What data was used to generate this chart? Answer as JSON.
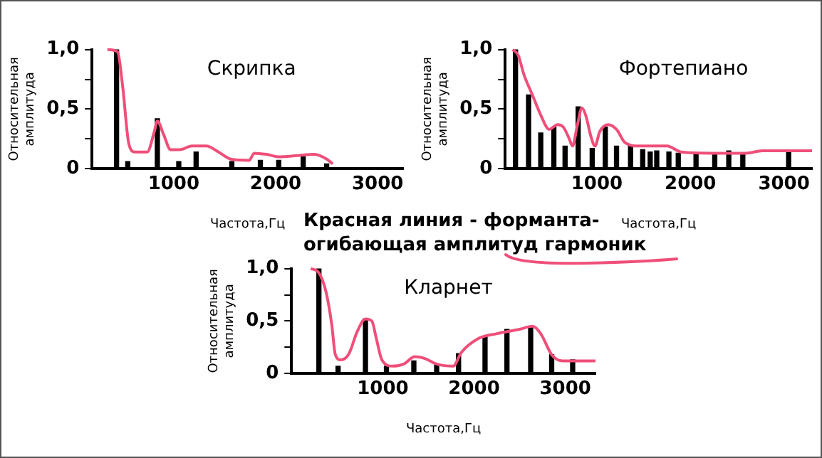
{
  "chart_data": [
    {
      "type": "bar",
      "title": "Скрипка",
      "xlabel": "Частота,Гц",
      "ylabel": "Относительная амплитуда",
      "xlim": [
        200,
        3250
      ],
      "xticks": [
        1000,
        2000,
        3000
      ],
      "ylim": [
        0,
        1
      ],
      "yticks": [
        {
          "value": 0,
          "label": "0"
        },
        {
          "value": 0.25,
          "label": null
        },
        {
          "value": 0.5,
          "label": "0,5"
        },
        {
          "value": 0.75,
          "label": null
        },
        {
          "value": 1,
          "label": "1,0"
        }
      ],
      "grid": false,
      "legend": false,
      "series": [
        {
          "color": "#000000",
          "x": [
            440,
            550,
            840,
            1050,
            1220,
            1570,
            1850,
            2030,
            2270,
            2500
          ],
          "values": [
            1.0,
            0.06,
            0.42,
            0.06,
            0.14,
            0.06,
            0.07,
            0.07,
            0.1,
            0.04
          ]
        },
        {
          "type": "line",
          "color": "#ef4f79",
          "marker": "none",
          "x": [
            350,
            450,
            500,
            560,
            620,
            740,
            810,
            840,
            900,
            970,
            1060,
            1180,
            1320,
            1440,
            1560,
            1740,
            1790,
            1910,
            2030,
            2210,
            2380,
            2500,
            2560
          ],
          "values": [
            1.0,
            0.98,
            0.69,
            0.21,
            0.14,
            0.14,
            0.31,
            0.4,
            0.29,
            0.16,
            0.16,
            0.19,
            0.19,
            0.14,
            0.08,
            0.07,
            0.13,
            0.12,
            0.1,
            0.11,
            0.12,
            0.08,
            0.04
          ]
        }
      ]
    },
    {
      "type": "bar",
      "title": "Фортепиано",
      "xlabel": "Частота,Гц",
      "ylabel": "Относительная амплитуда",
      "xlim": [
        20,
        3300
      ],
      "xticks": [
        1000,
        2000,
        3000
      ],
      "ylim": [
        0,
        1
      ],
      "yticks": [
        {
          "value": 0,
          "label": "0"
        },
        {
          "value": 0.25,
          "label": null
        },
        {
          "value": 0.5,
          "label": "0,5"
        },
        {
          "value": 0.75,
          "label": null
        },
        {
          "value": 1,
          "label": "1,0"
        }
      ],
      "grid": false,
      "legend": false,
      "annotations": [
        "Красная линия - форманта-огибающая амплитуд гармоник"
      ],
      "series": [
        {
          "color": "#000000",
          "x": [
            130,
            270,
            400,
            540,
            660,
            800,
            950,
            1090,
            1210,
            1360,
            1490,
            1570,
            1640,
            1770,
            1870,
            2060,
            2260,
            2410,
            2560,
            3050
          ],
          "values": [
            1.0,
            0.62,
            0.3,
            0.35,
            0.19,
            0.52,
            0.17,
            0.35,
            0.19,
            0.19,
            0.16,
            0.14,
            0.15,
            0.14,
            0.13,
            0.13,
            0.13,
            0.15,
            0.12,
            0.15
          ]
        },
        {
          "type": "line",
          "color": "#ef4f79",
          "marker": "none",
          "x": [
            100,
            160,
            220,
            310,
            400,
            490,
            580,
            640,
            700,
            740,
            790,
            840,
            880,
            940,
            980,
            1030,
            1120,
            1210,
            1300,
            1450,
            1750,
            1900,
            2230,
            2590,
            2770,
            3300
          ],
          "values": [
            1.0,
            0.95,
            0.79,
            0.62,
            0.45,
            0.33,
            0.37,
            0.35,
            0.26,
            0.19,
            0.36,
            0.51,
            0.45,
            0.26,
            0.19,
            0.31,
            0.37,
            0.33,
            0.22,
            0.19,
            0.19,
            0.14,
            0.13,
            0.13,
            0.15,
            0.15
          ]
        }
      ]
    },
    {
      "type": "bar",
      "title": "Кларнет",
      "xlabel": "Частота,Гц",
      "ylabel": "Относительная амплитуда",
      "xlim": [
        0,
        3330
      ],
      "xticks": [
        1000,
        2000,
        3000
      ],
      "ylim": [
        0,
        1
      ],
      "yticks": [
        {
          "value": 0,
          "label": "0"
        },
        {
          "value": 0.25,
          "label": null
        },
        {
          "value": 0.5,
          "label": "0,5"
        },
        {
          "value": 0.75,
          "label": null
        },
        {
          "value": 1,
          "label": "1,0"
        }
      ],
      "grid": false,
      "legend": false,
      "series": [
        {
          "color": "#000000",
          "x": [
            300,
            510,
            810,
            1040,
            1340,
            1590,
            1830,
            2120,
            2360,
            2620,
            2850,
            3080
          ],
          "values": [
            1.0,
            0.07,
            0.52,
            0.07,
            0.12,
            0.09,
            0.19,
            0.35,
            0.42,
            0.45,
            0.18,
            0.13
          ]
        },
        {
          "type": "line",
          "color": "#ef4f79",
          "marker": "none",
          "x": [
            210,
            300,
            380,
            440,
            480,
            540,
            630,
            720,
            810,
            880,
            930,
            990,
            1110,
            1230,
            1350,
            1470,
            1590,
            1770,
            1860,
            2040,
            2250,
            2490,
            2640,
            2730,
            2850,
            2970,
            3330
          ],
          "values": [
            1.0,
            0.96,
            0.77,
            0.47,
            0.18,
            0.13,
            0.19,
            0.4,
            0.52,
            0.5,
            0.33,
            0.13,
            0.07,
            0.09,
            0.16,
            0.14,
            0.09,
            0.07,
            0.2,
            0.33,
            0.38,
            0.42,
            0.45,
            0.38,
            0.18,
            0.12,
            0.12
          ]
        }
      ]
    }
  ]
}
